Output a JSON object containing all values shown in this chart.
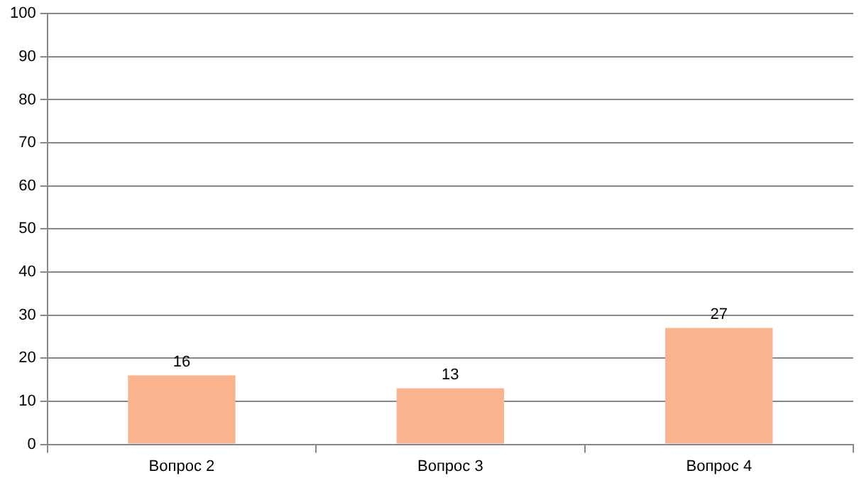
{
  "chart_data": {
    "type": "bar",
    "categories": [
      "Вопрос 2",
      "Вопрос 3",
      "Вопрос 4"
    ],
    "values": [
      16,
      13,
      27
    ],
    "color": "#f9b48e",
    "ylim": [
      0,
      100
    ],
    "yticks": [
      0,
      10,
      20,
      30,
      40,
      50,
      60,
      70,
      80,
      90,
      100
    ],
    "grid": "y",
    "data_labels": true,
    "legend": false
  }
}
